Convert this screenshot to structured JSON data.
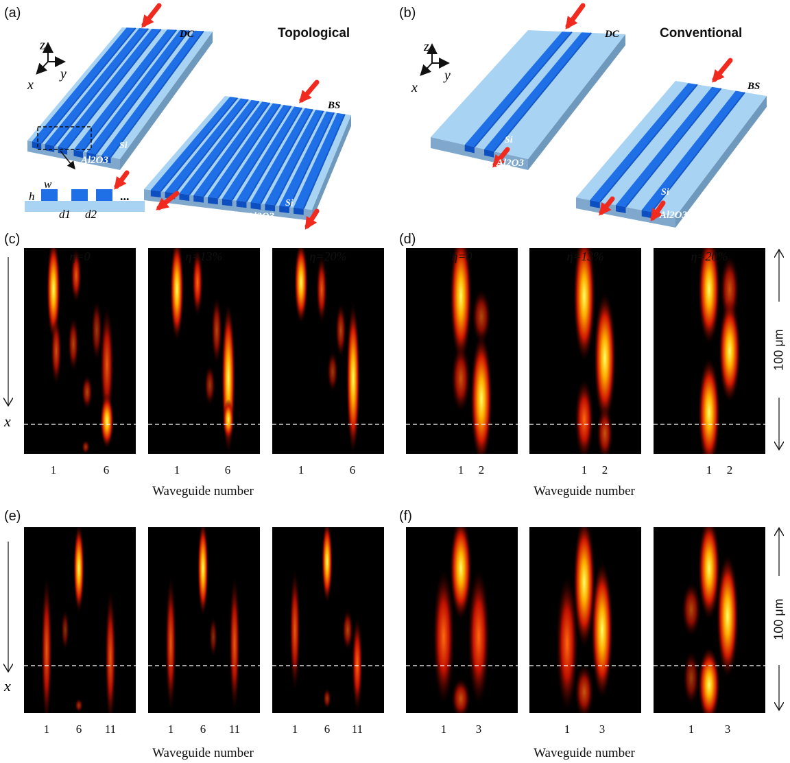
{
  "panel_labels": {
    "a": "(a)",
    "b": "(b)",
    "c": "(c)",
    "d": "(d)",
    "e": "(e)",
    "f": "(f)"
  },
  "titles": {
    "a": "Topological",
    "b": "Conventional"
  },
  "diagram_labels": {
    "dc": "DC",
    "bs": "BS",
    "si": "Si",
    "substrate": "Al2O3",
    "axis_x": "x",
    "axis_y": "y",
    "axis_z": "z",
    "w": "w",
    "h": "h",
    "d1": "d1",
    "d2": "d2",
    "ellipsis": "..."
  },
  "eta_labels": [
    "η=0",
    "η=13%",
    "η=20%"
  ],
  "ticks": {
    "c": [
      "1",
      "6"
    ],
    "d": [
      "1",
      "2"
    ],
    "e": [
      "1",
      "6",
      "11"
    ],
    "f": [
      "1",
      "3"
    ]
  },
  "xlabel": "Waveguide number",
  "propagation_axis_label": "x",
  "scale_bar": "100 μm",
  "colors": {
    "waveguide": "#1f6fe6",
    "substrate": "#a9d3f2",
    "arrow": "#f02a1e"
  }
}
